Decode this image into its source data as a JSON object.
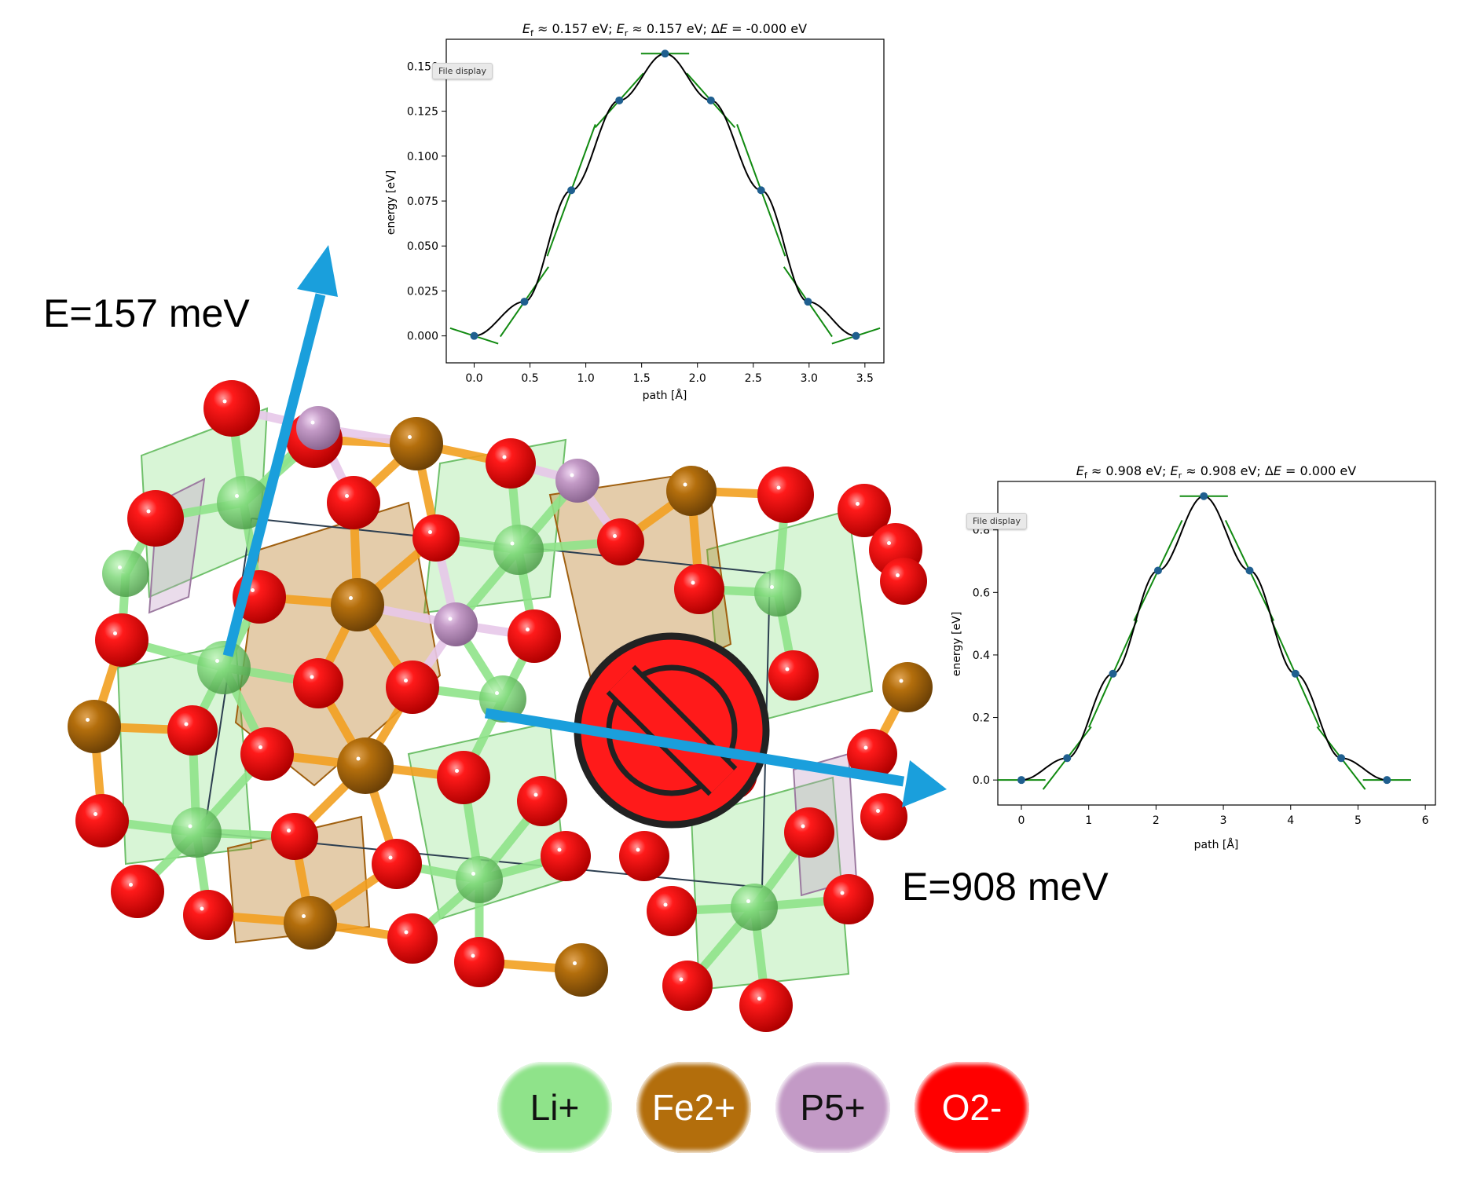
{
  "labels": {
    "path_a": "E=157 meV",
    "path_b": "E=908 meV",
    "file_display_1": "File display",
    "file_display_2": "File display"
  },
  "legend": [
    {
      "label": "Li+",
      "color": "#8fe38a",
      "text_color": "#111111"
    },
    {
      "label": "Fe2+",
      "color": "#b36e0c",
      "text_color": "#ffffff"
    },
    {
      "label": "P5+",
      "color": "#c39ac6",
      "text_color": "#111111"
    },
    {
      "label": "O2-",
      "color": "#ff0000",
      "text_color": "#ffffff"
    }
  ],
  "colors": {
    "arrow": "#1a9fdc",
    "curve": "#000000",
    "tangent": "#118a11",
    "points": "#1f5f8f",
    "prohibit_fill": "#ff1a1a",
    "prohibit_outline": "#222222"
  },
  "chart_data": [
    {
      "type": "line",
      "title": "E_f ≈ 0.157 eV; E_r ≈ 0.157 eV; ΔE = -0.000 eV",
      "title_parts": {
        "a": "E",
        "a_sub": "f",
        "b": " ≈  0.157 eV; ",
        "c": "E",
        "c_sub": "r",
        "d": " ≈  0.157 eV; Δ",
        "e": "E",
        "f": " = -0.000 eV"
      },
      "xlabel": "path [Å]",
      "ylabel": "energy [eV]",
      "xlim": [
        -0.25,
        3.67
      ],
      "ylim": [
        -0.015,
        0.165
      ],
      "xticks": [
        0.0,
        0.5,
        1.0,
        1.5,
        2.0,
        2.5,
        3.0,
        3.5
      ],
      "xtick_labels": [
        "0.0",
        "0.5",
        "1.0",
        "1.5",
        "2.0",
        "2.5",
        "3.0",
        "3.5"
      ],
      "yticks": [
        0.0,
        0.025,
        0.05,
        0.075,
        0.1,
        0.125,
        0.15
      ],
      "ytick_labels": [
        "0.000",
        "0.025",
        "0.050",
        "0.075",
        "0.100",
        "0.125",
        "0.150"
      ],
      "x": [
        0.0,
        0.45,
        0.87,
        1.3,
        1.71,
        2.12,
        2.57,
        2.99,
        3.42
      ],
      "y": [
        0.0,
        0.019,
        0.081,
        0.131,
        0.157,
        0.131,
        0.081,
        0.019,
        0.0
      ],
      "tangent_slopes": [
        -0.02,
        0.09,
        0.17,
        0.07,
        0.0,
        -0.07,
        -0.17,
        -0.09,
        0.02
      ]
    },
    {
      "type": "line",
      "title": "E_f ≈ 0.908 eV; E_r ≈ 0.908 eV; ΔE = 0.000 eV",
      "title_parts": {
        "a": "E",
        "a_sub": "f",
        "b": " ≈  0.908 eV; ",
        "c": "E",
        "c_sub": "r",
        "d": " ≈ 0.908 eV; Δ",
        "e": "E",
        "f": " = 0.000 eV"
      },
      "xlabel": "path [Å]",
      "ylabel": "energy [eV]",
      "xlim": [
        -0.35,
        6.15
      ],
      "ylim": [
        -0.08,
        0.955
      ],
      "xticks": [
        0,
        1,
        2,
        3,
        4,
        5,
        6
      ],
      "xtick_labels": [
        "0",
        "1",
        "2",
        "3",
        "4",
        "5",
        "6"
      ],
      "yticks": [
        0.0,
        0.2,
        0.4,
        0.6,
        0.8
      ],
      "ytick_labels": [
        "0.0",
        "0.2",
        "0.4",
        "0.6",
        "0.8"
      ],
      "x": [
        0.0,
        0.68,
        1.36,
        2.03,
        2.71,
        3.39,
        4.07,
        4.75,
        5.43
      ],
      "y": [
        0.0,
        0.07,
        0.34,
        0.67,
        0.908,
        0.67,
        0.34,
        0.07,
        0.0
      ],
      "tangent_slopes": [
        0.0,
        0.28,
        0.48,
        0.45,
        0.0,
        -0.45,
        -0.48,
        -0.28,
        0.0
      ]
    }
  ]
}
